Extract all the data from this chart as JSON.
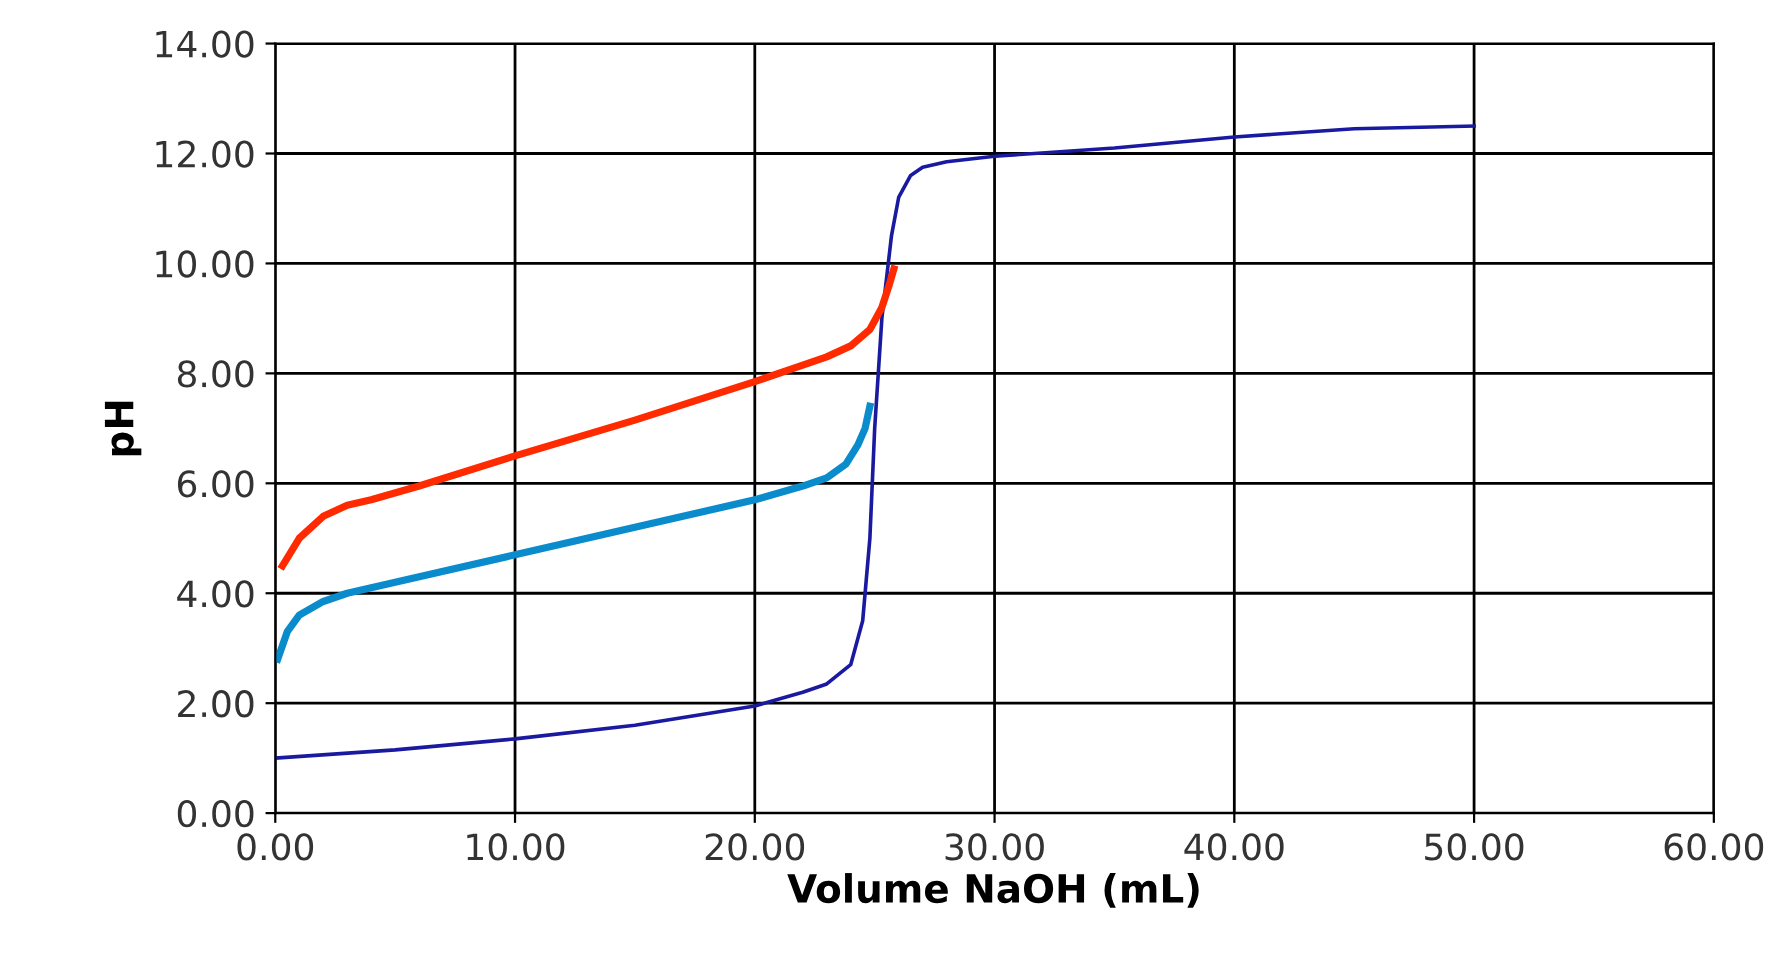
{
  "chart_data": {
    "type": "line",
    "xlabel": "Volume NaOH (mL)",
    "ylabel": "pH",
    "xlim": [
      0,
      60
    ],
    "ylim": [
      0,
      14
    ],
    "xticks": [
      {
        "value": 0,
        "label": "0.00"
      },
      {
        "value": 10,
        "label": "10.00"
      },
      {
        "value": 20,
        "label": "20.00"
      },
      {
        "value": 30,
        "label": "30.00"
      },
      {
        "value": 40,
        "label": "40.00"
      },
      {
        "value": 50,
        "label": "50.00"
      },
      {
        "value": 60,
        "label": "60.00"
      }
    ],
    "yticks": [
      {
        "value": 0,
        "label": "0.00"
      },
      {
        "value": 2,
        "label": "2.00"
      },
      {
        "value": 4,
        "label": "4.00"
      },
      {
        "value": 6,
        "label": "6.00"
      },
      {
        "value": 8,
        "label": "8.00"
      },
      {
        "value": 10,
        "label": "10.00"
      },
      {
        "value": 12,
        "label": "12.00"
      },
      {
        "value": 14,
        "label": "14.00"
      }
    ],
    "grid": true,
    "marker": "none",
    "line_style": "solid",
    "series": [
      {
        "color": "#1a1aa0",
        "x": [
          0,
          5,
          10,
          15,
          20,
          22,
          23,
          24,
          24.5,
          24.8,
          25,
          25.3,
          25.7,
          26,
          26.5,
          27,
          28,
          30,
          35,
          40,
          45,
          50
        ],
        "values": [
          1.0,
          1.15,
          1.35,
          1.6,
          1.95,
          2.2,
          2.35,
          2.7,
          3.5,
          5.0,
          7.0,
          9.0,
          10.5,
          11.2,
          11.6,
          11.75,
          11.85,
          11.95,
          12.1,
          12.3,
          12.45,
          12.5
        ]
      },
      {
        "color": "#ff2a00",
        "x": [
          0.3,
          1,
          2,
          3,
          4,
          6,
          10,
          15,
          20,
          22,
          23,
          24,
          24.8,
          25.3,
          25.6,
          25.8
        ],
        "values": [
          4.5,
          5.0,
          5.4,
          5.6,
          5.7,
          5.95,
          6.5,
          7.15,
          7.85,
          8.15,
          8.3,
          8.5,
          8.8,
          9.2,
          9.6,
          9.9
        ]
      },
      {
        "color": "#0a8ccc",
        "x": [
          0.1,
          0.5,
          1,
          2,
          3,
          5,
          10,
          15,
          20,
          22,
          23,
          23.8,
          24.3,
          24.6,
          24.8
        ],
        "values": [
          2.8,
          3.3,
          3.6,
          3.85,
          4.0,
          4.2,
          4.7,
          5.2,
          5.7,
          5.95,
          6.1,
          6.35,
          6.7,
          7.0,
          7.4
        ]
      }
    ]
  }
}
